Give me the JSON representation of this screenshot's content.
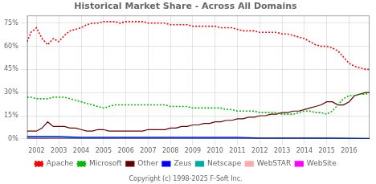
{
  "chart_data": {
    "type": "line",
    "title": "Historical Market Share - Across All Domains",
    "annotations": [
      "Copyright (c) 1998-2025 F-Soft Inc."
    ],
    "xlim": [
      2001.58,
      2016.92
    ],
    "xticks": [
      2002,
      2003,
      2004,
      2005,
      2006,
      2007,
      2008,
      2009,
      2010,
      2011,
      2012,
      2013,
      2014,
      2015,
      2016
    ],
    "ylim": [
      0,
      80
    ],
    "yticks": [
      {
        "value": 0,
        "label": "0%"
      },
      {
        "value": 15,
        "label": "15%"
      },
      {
        "value": 30,
        "label": "30%"
      },
      {
        "value": 45,
        "label": "45%"
      },
      {
        "value": 60,
        "label": "60%"
      },
      {
        "value": 75,
        "label": "75%"
      }
    ],
    "grid": true,
    "legend": "bottom",
    "series": [
      {
        "name": "Apache",
        "color": "#ff0000",
        "line_style": "dotted",
        "x": [
          2001.58,
          2001.75,
          2002.0,
          2002.25,
          2002.5,
          2002.75,
          2003.0,
          2003.25,
          2003.5,
          2003.75,
          2004.0,
          2004.25,
          2004.5,
          2004.75,
          2005.0,
          2005.25,
          2005.5,
          2005.75,
          2006.0,
          2006.25,
          2006.5,
          2006.75,
          2007.0,
          2007.25,
          2007.5,
          2007.75,
          2008.0,
          2008.25,
          2008.5,
          2008.75,
          2009.0,
          2009.25,
          2009.5,
          2009.75,
          2010.0,
          2010.25,
          2010.5,
          2010.75,
          2011.0,
          2011.25,
          2011.5,
          2011.75,
          2012.0,
          2012.25,
          2012.5,
          2012.75,
          2013.0,
          2013.25,
          2013.5,
          2013.75,
          2014.0,
          2014.25,
          2014.5,
          2014.75,
          2015.0,
          2015.25,
          2015.5,
          2015.75,
          2016.0,
          2016.25,
          2016.5,
          2016.75,
          2016.92
        ],
        "values": [
          63,
          69,
          72,
          65,
          61,
          65,
          63,
          67,
          70,
          71,
          72,
          74,
          75,
          75,
          76,
          76,
          76,
          75,
          76,
          76,
          76,
          76,
          75,
          75,
          75,
          75,
          74,
          74,
          74,
          74,
          73,
          73,
          73,
          73,
          73,
          72,
          72,
          72,
          71,
          70,
          70,
          70,
          69,
          69,
          69,
          69,
          68,
          68,
          67,
          66,
          65,
          63,
          61,
          60,
          60,
          59,
          57,
          53,
          49,
          47,
          46,
          45,
          45
        ]
      },
      {
        "name": "Microsoft",
        "color": "#00bb00",
        "line_style": "dotted",
        "x": [
          2001.58,
          2001.75,
          2002.0,
          2002.25,
          2002.5,
          2002.75,
          2003.0,
          2003.25,
          2003.5,
          2003.75,
          2004.0,
          2004.25,
          2004.5,
          2004.75,
          2005.0,
          2005.25,
          2005.5,
          2005.75,
          2006.0,
          2006.25,
          2006.5,
          2006.75,
          2007.0,
          2007.25,
          2007.5,
          2007.75,
          2008.0,
          2008.25,
          2008.5,
          2008.75,
          2009.0,
          2009.25,
          2009.5,
          2009.75,
          2010.0,
          2010.25,
          2010.5,
          2010.75,
          2011.0,
          2011.25,
          2011.5,
          2011.75,
          2012.0,
          2012.25,
          2012.5,
          2012.75,
          2013.0,
          2013.25,
          2013.5,
          2013.75,
          2014.0,
          2014.25,
          2014.5,
          2014.75,
          2015.0,
          2015.25,
          2015.5,
          2015.75,
          2016.0,
          2016.25,
          2016.5,
          2016.75,
          2016.92
        ],
        "values": [
          27,
          27,
          26,
          26,
          26,
          27,
          27,
          27,
          26,
          25,
          24,
          23,
          22,
          21,
          20,
          21,
          22,
          22,
          22,
          22,
          22,
          22,
          22,
          22,
          22,
          22,
          21,
          21,
          21,
          21,
          20,
          20,
          20,
          20,
          20,
          20,
          19,
          19,
          18,
          18,
          18,
          18,
          17,
          17,
          17,
          17,
          16,
          16,
          16,
          17,
          18,
          18,
          17,
          17,
          16,
          18,
          22,
          26,
          28,
          28,
          29,
          29,
          30
        ]
      },
      {
        "name": "Other",
        "color": "#660000",
        "line_style": "solid",
        "x": [
          2001.58,
          2001.75,
          2002.0,
          2002.25,
          2002.5,
          2002.75,
          2003.0,
          2003.25,
          2003.5,
          2003.75,
          2004.0,
          2004.25,
          2004.5,
          2004.75,
          2005.0,
          2005.25,
          2005.5,
          2005.75,
          2006.0,
          2006.25,
          2006.5,
          2006.75,
          2007.0,
          2007.25,
          2007.5,
          2007.75,
          2008.0,
          2008.25,
          2008.5,
          2008.75,
          2009.0,
          2009.25,
          2009.5,
          2009.75,
          2010.0,
          2010.25,
          2010.5,
          2010.75,
          2011.0,
          2011.25,
          2011.5,
          2011.75,
          2012.0,
          2012.25,
          2012.5,
          2012.75,
          2013.0,
          2013.25,
          2013.5,
          2013.75,
          2014.0,
          2014.25,
          2014.5,
          2014.75,
          2015.0,
          2015.25,
          2015.5,
          2015.75,
          2016.0,
          2016.25,
          2016.5,
          2016.75,
          2016.92
        ],
        "values": [
          5,
          5,
          5,
          7,
          11,
          8,
          8,
          8,
          7,
          7,
          6,
          5,
          5,
          6,
          6,
          5,
          5,
          5,
          5,
          5,
          5,
          5,
          6,
          6,
          6,
          6,
          7,
          7,
          8,
          8,
          9,
          9,
          10,
          10,
          11,
          11,
          12,
          12,
          13,
          13,
          14,
          14,
          15,
          15,
          16,
          16,
          17,
          17,
          18,
          18,
          19,
          20,
          21,
          22,
          24,
          24,
          22,
          22,
          24,
          28,
          29,
          30,
          30
        ]
      },
      {
        "name": "Zeus",
        "color": "#0000ff",
        "line_style": "solid",
        "x": [
          2001.58,
          2002.0,
          2003.0,
          2004.0,
          2005.0,
          2006.0,
          2007.0,
          2008.0,
          2009.0,
          2010.0,
          2011.0,
          2012.0,
          2013.0,
          2014.0,
          2015.0,
          2016.0,
          2016.92
        ],
        "values": [
          1.5,
          1.5,
          1.5,
          1.0,
          1.0,
          1.0,
          1.0,
          1.0,
          1.0,
          1.0,
          1.0,
          0.5,
          0.5,
          0.5,
          0.5,
          0.3,
          0.2
        ]
      },
      {
        "name": "Netscape",
        "color": "#00aaaa",
        "line_style": "solid",
        "x": [
          2001.58,
          2002.0,
          2003.0,
          2004.0,
          2005.0,
          2006.0,
          2007.0,
          2008.0,
          2009.0,
          2010.0,
          2011.0,
          2012.0,
          2013.0,
          2014.0,
          2015.0,
          2016.0,
          2016.92
        ],
        "values": [
          1.0,
          1.0,
          1.0,
          0.5,
          0.5,
          0.5,
          0.5,
          0.5,
          0.3,
          0.3,
          0.3,
          0.3,
          0.3,
          0.3,
          0.2,
          0.2,
          0.1
        ]
      },
      {
        "name": "WebSTAR",
        "color": "#ffaaaa",
        "line_style": "solid",
        "x": [
          2001.58,
          2002.0,
          2003.0,
          2004.0,
          2005.0,
          2006.0,
          2007.0,
          2008.0,
          2009.0,
          2010.0,
          2011.0,
          2012.0,
          2013.0,
          2014.0,
          2015.0,
          2016.0,
          2016.92
        ],
        "values": [
          0.8,
          0.8,
          0.5,
          0.5,
          0.5,
          0.3,
          0.3,
          0.2,
          0.2,
          0.2,
          0.2,
          0.2,
          0.2,
          0.1,
          0.1,
          0.1,
          0.1
        ]
      },
      {
        "name": "WebSite",
        "color": "#ff00ff",
        "line_style": "solid",
        "x": [
          2001.58,
          2002.0,
          2003.0,
          2004.0,
          2005.0,
          2006.0,
          2007.0,
          2008.0,
          2009.0,
          2010.0,
          2011.0,
          2012.0,
          2013.0,
          2014.0,
          2015.0,
          2016.0,
          2016.92
        ],
        "values": [
          0.5,
          0.5,
          0.5,
          0.5,
          0.5,
          0.5,
          0.3,
          0.3,
          0.3,
          0.3,
          0.3,
          0.2,
          0.2,
          0.2,
          0.2,
          0.1,
          0.1
        ]
      }
    ]
  }
}
